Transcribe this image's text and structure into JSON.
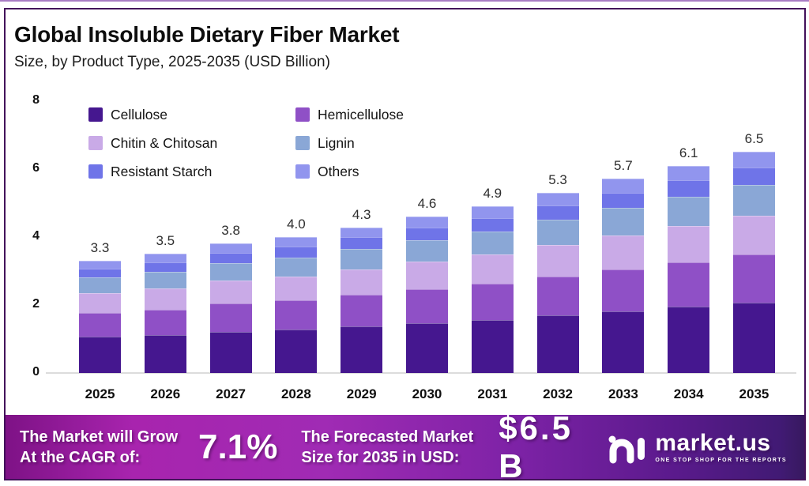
{
  "header": {
    "title": "Global Insoluble Dietary Fiber Market",
    "subtitle": "Size, by Product Type, 2025-2035 (USD Billion)"
  },
  "chart_data": {
    "type": "bar",
    "stacked": true,
    "title": "Global Insoluble Dietary Fiber Market Size, by Product Type, 2025-2035 (USD Billion)",
    "xlabel": "",
    "ylabel": "",
    "unit": "USD Billion",
    "ylim": [
      0,
      8
    ],
    "yticks": [
      0,
      2,
      4,
      6,
      8
    ],
    "grid": false,
    "legend_position": "top-left",
    "categories": [
      "2025",
      "2026",
      "2027",
      "2028",
      "2029",
      "2030",
      "2031",
      "2032",
      "2033",
      "2034",
      "2035"
    ],
    "totals": [
      3.3,
      3.5,
      3.8,
      4.0,
      4.3,
      4.6,
      4.9,
      5.3,
      5.7,
      6.1,
      6.5
    ],
    "series": [
      {
        "name": "Cellulose",
        "color": "#45178f",
        "values": [
          1.06,
          1.12,
          1.22,
          1.28,
          1.38,
          1.47,
          1.57,
          1.7,
          1.82,
          1.95,
          2.08
        ]
      },
      {
        "name": "Hemicellulose",
        "color": "#8f50c6",
        "values": [
          0.71,
          0.75,
          0.82,
          0.86,
          0.92,
          0.99,
          1.05,
          1.14,
          1.23,
          1.31,
          1.4
        ]
      },
      {
        "name": "Chitin & Chitosan",
        "color": "#c9aae7",
        "values": [
          0.58,
          0.61,
          0.67,
          0.7,
          0.75,
          0.81,
          0.86,
          0.93,
          1.0,
          1.07,
          1.14
        ]
      },
      {
        "name": "Lignin",
        "color": "#8aa7d6",
        "values": [
          0.46,
          0.49,
          0.53,
          0.56,
          0.6,
          0.64,
          0.69,
          0.74,
          0.8,
          0.85,
          0.91
        ]
      },
      {
        "name": "Resistant Starch",
        "color": "#6f74e8",
        "values": [
          0.26,
          0.28,
          0.3,
          0.32,
          0.34,
          0.37,
          0.39,
          0.42,
          0.46,
          0.49,
          0.52
        ]
      },
      {
        "name": "Others",
        "color": "#9195ee",
        "values": [
          0.23,
          0.25,
          0.27,
          0.28,
          0.3,
          0.32,
          0.34,
          0.37,
          0.4,
          0.43,
          0.46
        ]
      }
    ]
  },
  "footer": {
    "cagr_text_line1": "The Market will Grow",
    "cagr_text_line2": "At the CAGR of:",
    "cagr_value": "7.1%",
    "forecast_text_line1": "The Forecasted Market",
    "forecast_text_line2": "Size for 2035 in USD:",
    "forecast_value": "$6.5 B",
    "brand": {
      "name": "market.us",
      "tagline": "ONE STOP SHOP FOR THE REPORTS"
    }
  }
}
